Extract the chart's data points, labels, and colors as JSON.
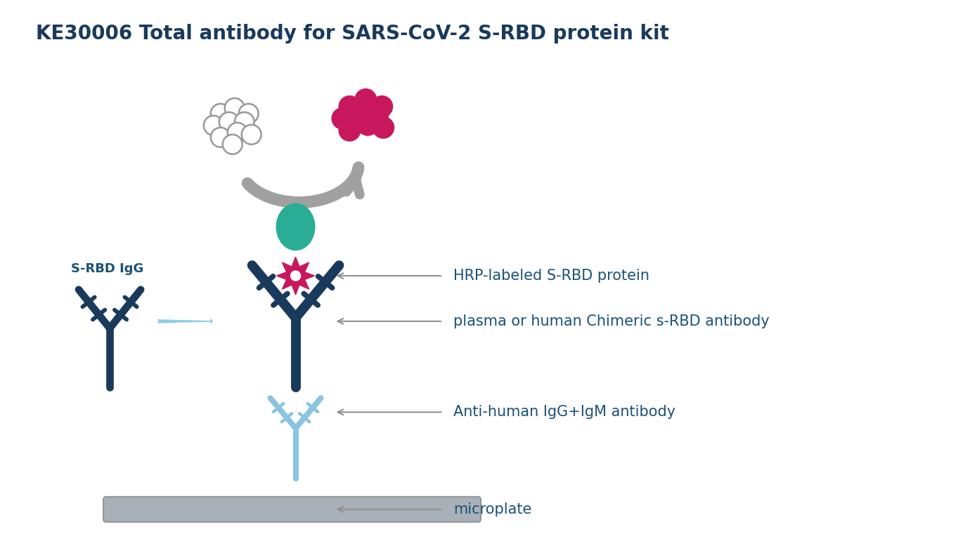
{
  "title": "KE30006 Total antibody for SARS-CoV-2 S-RBD protein kit",
  "title_color": "#1a3a5c",
  "title_fontsize": 20,
  "bg_color": "#ffffff",
  "label_color": "#1a5276",
  "label_fontsize": 15,
  "labels": [
    "HRP-labeled S-RBD protein",
    "plasma or human Chimeric s-RBD antibody",
    "Anti-human IgG+IgM antibody",
    "microplate"
  ],
  "srbd_label": "S-RBD IgG",
  "dark_blue": "#1a3a5c",
  "light_blue_ab": "#89c4e1",
  "teal": "#2aad96",
  "magenta": "#c8175c",
  "gray_arrow": "#a0a0a0",
  "arrow_blue": "#8ecae6",
  "plate_color": "#aab0b8",
  "white_circle_edge": "#999999"
}
